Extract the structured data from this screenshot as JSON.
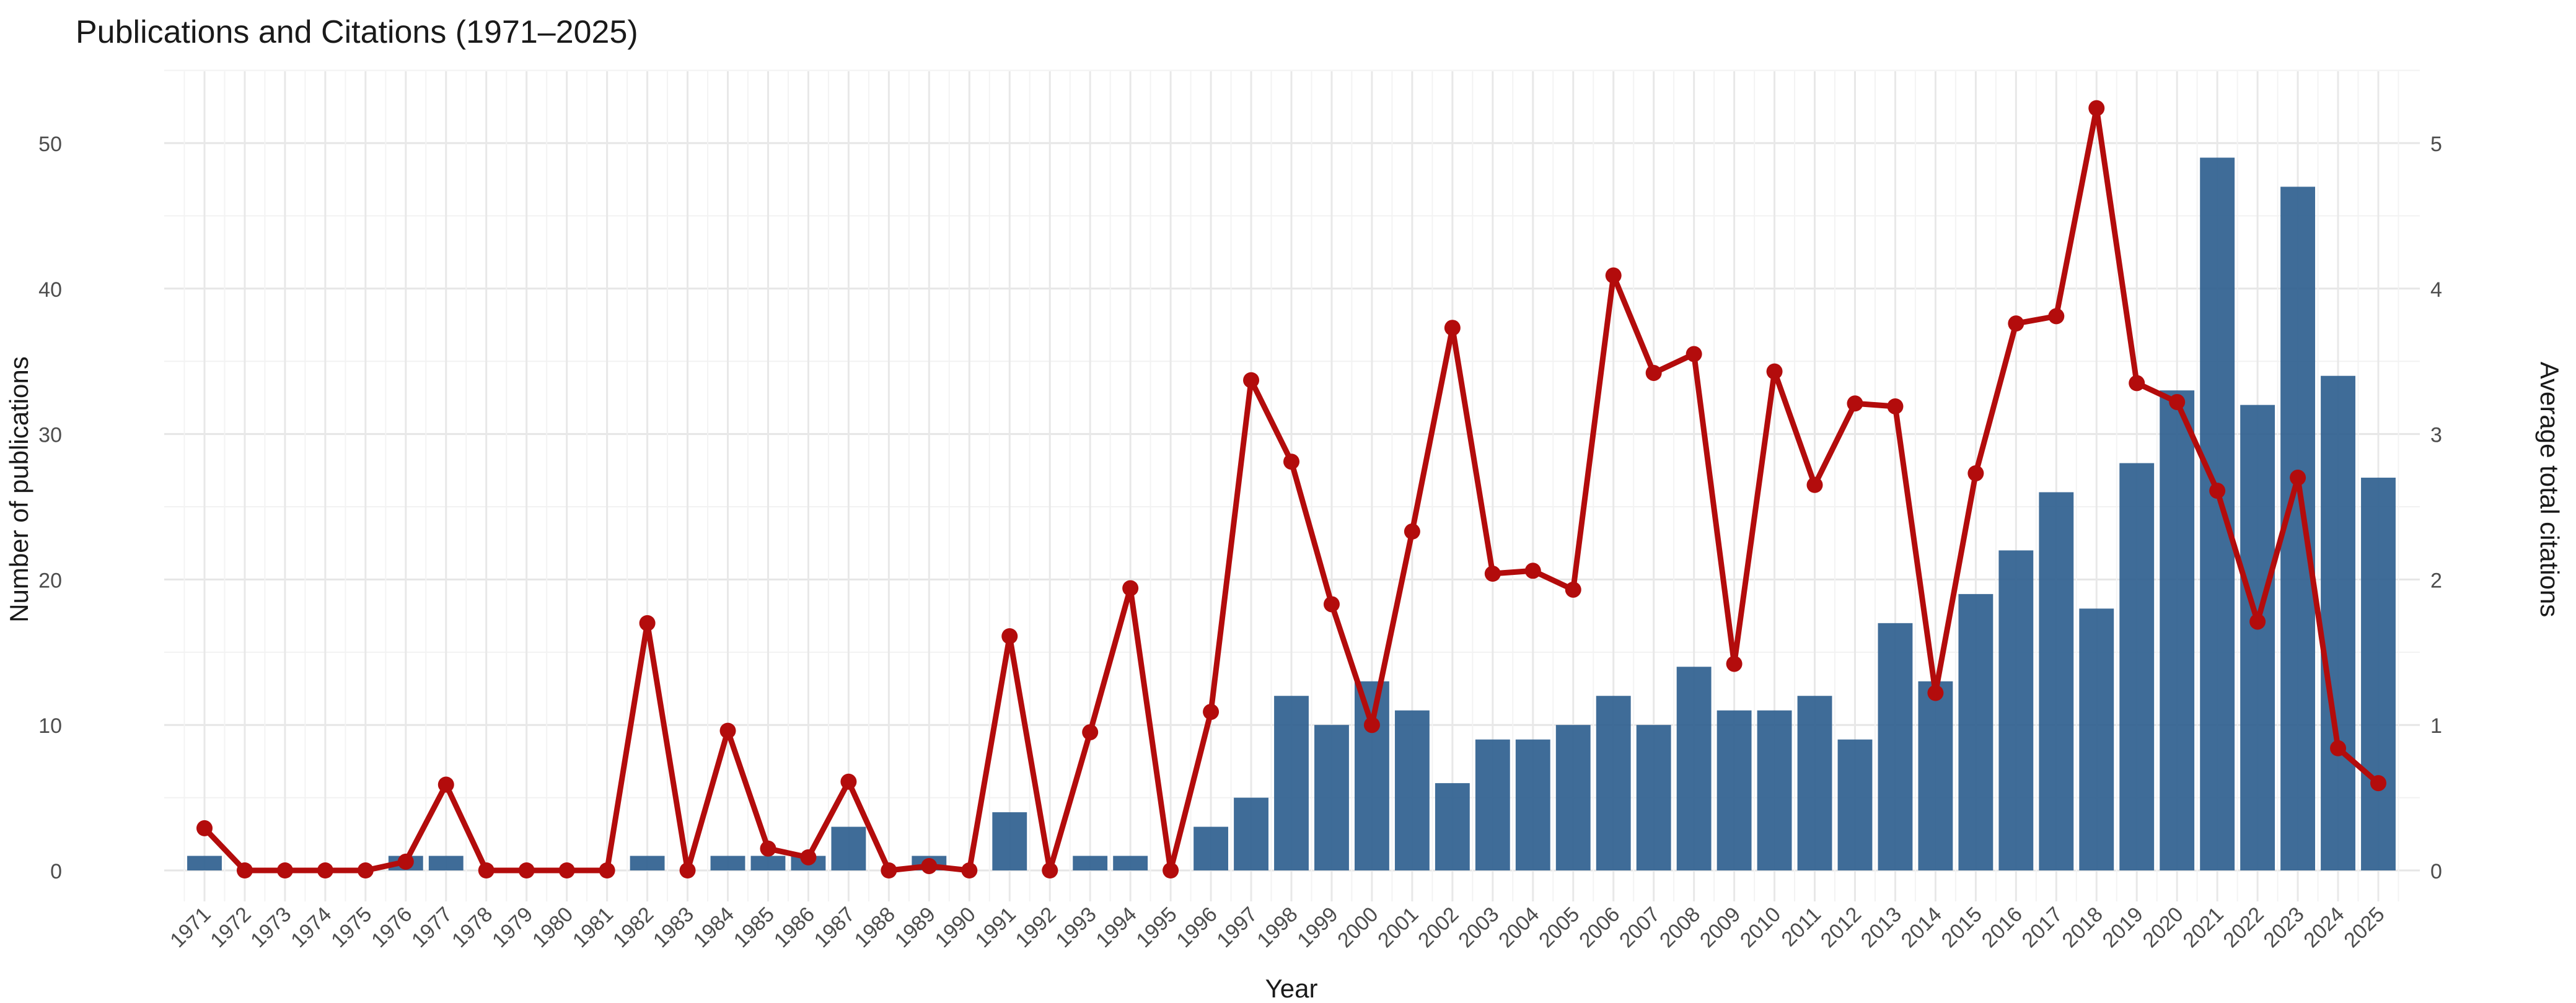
{
  "chart_data": {
    "type": "bar",
    "title": "Publications and Citations (1971–2025)",
    "xlabel": "Year",
    "ylabel": "Number of publications",
    "y2label": "Average total citations",
    "ylim": [
      0,
      55
    ],
    "y2lim": [
      0,
      5.5
    ],
    "yticks": [
      0,
      10,
      20,
      30,
      40,
      50
    ],
    "y2ticks": [
      0,
      1,
      2,
      3,
      4,
      5
    ],
    "grid": true,
    "categories": [
      "1971",
      "1972",
      "1973",
      "1974",
      "1975",
      "1976",
      "1977",
      "1978",
      "1979",
      "1980",
      "1981",
      "1982",
      "1983",
      "1984",
      "1985",
      "1986",
      "1987",
      "1988",
      "1989",
      "1990",
      "1991",
      "1992",
      "1993",
      "1994",
      "1995",
      "1996",
      "1997",
      "1998",
      "1999",
      "2000",
      "2001",
      "2002",
      "2003",
      "2004",
      "2005",
      "2006",
      "2007",
      "2008",
      "2009",
      "2010",
      "2011",
      "2012",
      "2013",
      "2014",
      "2015",
      "2016",
      "2017",
      "2018",
      "2019",
      "2020",
      "2021",
      "2022",
      "2023",
      "2024",
      "2025"
    ],
    "series": [
      {
        "kind": "bar",
        "axis": "left",
        "color": "#2f5f8f",
        "values": [
          1,
          0,
          0,
          0,
          0,
          1,
          1,
          0,
          0,
          0,
          0,
          1,
          0,
          1,
          1,
          1,
          3,
          0,
          1,
          0,
          4,
          0,
          1,
          1,
          0,
          3,
          5,
          12,
          10,
          13,
          11,
          6,
          9,
          9,
          10,
          12,
          10,
          14,
          11,
          11,
          12,
          9,
          17,
          13,
          19,
          22,
          26,
          18,
          28,
          33,
          49,
          32,
          47,
          34,
          27
        ]
      },
      {
        "kind": "line",
        "axis": "right",
        "color": "#b30c0c",
        "values": [
          0.29,
          0,
          0,
          0,
          0,
          0.06,
          0.59,
          0,
          0,
          0,
          0,
          1.7,
          0,
          0.96,
          0.15,
          0.09,
          0.61,
          0,
          0.03,
          0,
          1.61,
          0,
          0.95,
          1.94,
          0,
          1.09,
          3.37,
          2.81,
          1.83,
          1.0,
          2.33,
          3.73,
          2.04,
          2.06,
          1.93,
          4.09,
          3.42,
          3.55,
          1.42,
          3.43,
          2.65,
          3.21,
          3.19,
          1.22,
          2.73,
          3.76,
          3.81,
          5.24,
          3.35,
          3.22,
          2.61,
          1.71,
          2.7,
          0.84,
          0.6
        ]
      }
    ]
  }
}
